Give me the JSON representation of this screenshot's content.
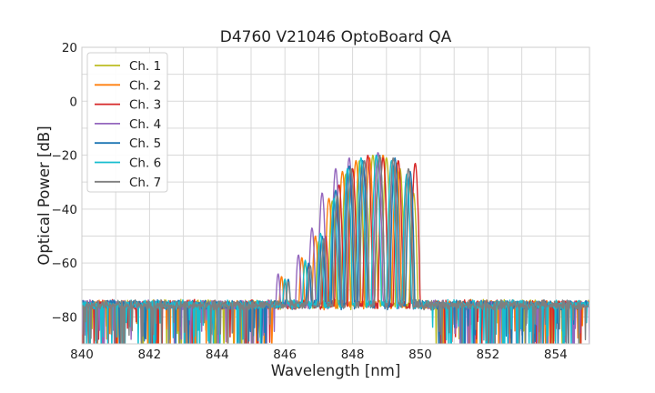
{
  "chart_data": {
    "type": "line",
    "title": "D4760 V21046 OptoBoard QA",
    "xlabel": "Wavelength [nm]",
    "ylabel": "Optical Power [dB]",
    "xlim": [
      840,
      855
    ],
    "ylim": [
      -90,
      20
    ],
    "xticks": [
      840,
      842,
      844,
      846,
      848,
      850,
      852,
      854
    ],
    "yticks": [
      -80,
      -60,
      -40,
      -20,
      0,
      20
    ],
    "grid": true,
    "legend_position": "top-left",
    "noise_floor_db": -75,
    "band_edges_nm": [
      846.5,
      850.1
    ],
    "series": [
      {
        "name": "Ch. 1",
        "color": "#bcbd22",
        "peaks": [
          [
            846.0,
            -66
          ],
          [
            846.6,
            -60
          ],
          [
            847.0,
            -52
          ],
          [
            847.4,
            -37
          ],
          [
            847.8,
            -27
          ],
          [
            848.2,
            -22
          ],
          [
            848.6,
            -20
          ],
          [
            849.0,
            -21
          ],
          [
            849.4,
            -25
          ],
          [
            849.8,
            -34
          ]
        ]
      },
      {
        "name": "Ch. 2",
        "color": "#ff7f0e",
        "peaks": [
          [
            845.9,
            -65
          ],
          [
            846.5,
            -58
          ],
          [
            846.9,
            -50
          ],
          [
            847.3,
            -36
          ],
          [
            847.7,
            -26
          ],
          [
            848.1,
            -22
          ],
          [
            848.5,
            -21
          ],
          [
            848.9,
            -20
          ],
          [
            849.3,
            -23
          ],
          [
            849.7,
            -30
          ]
        ]
      },
      {
        "name": "Ch. 3",
        "color": "#d62728",
        "peaks": [
          [
            846.0,
            -67
          ],
          [
            846.7,
            -61
          ],
          [
            847.2,
            -50
          ],
          [
            847.6,
            -31
          ],
          [
            848.0,
            -25
          ],
          [
            848.45,
            -20
          ],
          [
            848.9,
            -21
          ],
          [
            849.35,
            -22
          ],
          [
            849.85,
            -23
          ]
        ]
      },
      {
        "name": "Ch. 4",
        "color": "#9467bd",
        "peaks": [
          [
            845.8,
            -64
          ],
          [
            846.4,
            -57
          ],
          [
            846.8,
            -47
          ],
          [
            847.1,
            -34
          ],
          [
            847.5,
            -25
          ],
          [
            847.9,
            -21
          ],
          [
            848.3,
            -22
          ],
          [
            848.75,
            -19
          ],
          [
            849.2,
            -24
          ],
          [
            849.6,
            -28
          ]
        ]
      },
      {
        "name": "Ch. 5",
        "color": "#1f77b4",
        "peaks": [
          [
            846.1,
            -66
          ],
          [
            846.7,
            -60
          ],
          [
            847.1,
            -50
          ],
          [
            847.5,
            -33
          ],
          [
            847.9,
            -24
          ],
          [
            848.3,
            -22
          ],
          [
            848.8,
            -20
          ],
          [
            849.25,
            -21
          ],
          [
            849.7,
            -26
          ]
        ]
      },
      {
        "name": "Ch. 6",
        "color": "#17becf",
        "peaks": [
          [
            846.0,
            -66
          ],
          [
            846.6,
            -59
          ],
          [
            847.05,
            -49
          ],
          [
            847.45,
            -36
          ],
          [
            847.85,
            -25
          ],
          [
            848.25,
            -21
          ],
          [
            848.7,
            -20
          ],
          [
            849.15,
            -22
          ],
          [
            849.6,
            -27
          ]
        ]
      },
      {
        "name": "Ch. 7",
        "color": "#7f7f7f",
        "peaks": [
          [
            846.1,
            -67
          ],
          [
            846.75,
            -61
          ],
          [
            847.15,
            -51
          ],
          [
            847.55,
            -35
          ],
          [
            847.95,
            -25
          ],
          [
            848.35,
            -22
          ],
          [
            848.8,
            -20
          ],
          [
            849.2,
            -21
          ],
          [
            849.65,
            -25
          ]
        ]
      }
    ]
  }
}
